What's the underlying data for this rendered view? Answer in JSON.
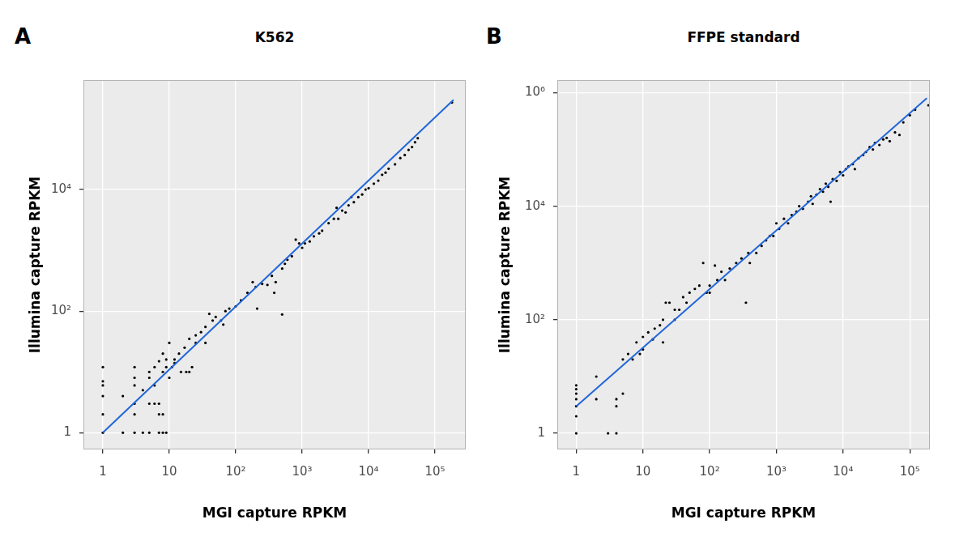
{
  "chart_data": [
    {
      "type": "scatter",
      "title": "K562",
      "annotations": [
        "A"
      ],
      "x_label": "MGI capture RPKM",
      "y_label": "Illumina capture RPKM",
      "log": true,
      "grid": true,
      "xlim": [
        0.51,
        290000
      ],
      "ylim": [
        0.53,
        630000
      ],
      "xticks": [
        1,
        10,
        {
          "value": 100,
          "label": "10²"
        },
        {
          "value": 1000,
          "label": "10³"
        },
        {
          "value": 10000,
          "label": "10⁴"
        },
        {
          "value": 100000,
          "label": "10⁵"
        }
      ],
      "yticks": [
        1,
        {
          "value": 100,
          "label": "10²"
        },
        {
          "value": 10000,
          "label": "10⁴"
        }
      ],
      "series": [
        {
          "type": "scatter",
          "color": "#000000",
          "marker": "circle",
          "x": [
            1,
            1,
            1,
            1,
            1,
            1,
            2,
            2,
            3,
            3,
            3,
            3,
            3,
            3,
            4,
            4,
            5,
            5,
            5,
            5,
            6,
            6,
            6,
            7,
            7,
            7,
            7,
            8,
            8,
            8,
            8,
            9,
            9,
            9,
            10,
            10,
            11,
            12,
            12,
            14,
            15,
            17,
            18,
            20,
            20,
            22,
            25,
            25,
            30,
            35,
            35,
            40,
            45,
            50,
            60,
            65,
            70,
            80,
            100,
            120,
            150,
            180,
            200,
            210,
            250,
            300,
            350,
            380,
            400,
            500,
            500,
            550,
            600,
            700,
            800,
            900,
            1000,
            1100,
            1300,
            1500,
            1800,
            2000,
            2500,
            3000,
            3300,
            3500,
            4000,
            4500,
            5000,
            5500,
            6000,
            7000,
            8000,
            9000,
            10000,
            12000,
            14000,
            16000,
            18000,
            20000,
            25000,
            30000,
            35000,
            40000,
            45000,
            50000,
            55000,
            180000
          ],
          "values": [
            1,
            2,
            4,
            6,
            7,
            12,
            1,
            4,
            1,
            2,
            3,
            6,
            8,
            12,
            1,
            5,
            1,
            3,
            8,
            10,
            3,
            6,
            12,
            1,
            2,
            3,
            15,
            1,
            2,
            10,
            20,
            1,
            12,
            16,
            8,
            30,
            12,
            14,
            16,
            20,
            10,
            25,
            10,
            10,
            35,
            12,
            30,
            40,
            45,
            30,
            55,
            90,
            70,
            80,
            70,
            60,
            100,
            110,
            120,
            150,
            200,
            300,
            250,
            110,
            280,
            270,
            380,
            200,
            300,
            88,
            500,
            600,
            700,
            800,
            1500,
            1300,
            1100,
            1300,
            1400,
            1700,
            1900,
            2100,
            2800,
            3300,
            5000,
            3300,
            4500,
            4200,
            5500,
            7500,
            6200,
            7500,
            8300,
            10000,
            10500,
            12500,
            14000,
            17500,
            19000,
            22000,
            26000,
            33000,
            37000,
            45000,
            50000,
            60000,
            70000,
            270000
          ]
        },
        {
          "type": "line",
          "color": "#2166d9",
          "line_style": "solid",
          "x": [
            1,
            190000
          ],
          "values": [
            1,
            300000
          ]
        }
      ]
    },
    {
      "type": "scatter",
      "title": "FFPE standard",
      "annotations": [
        "B"
      ],
      "x_label": "MGI capture RPKM",
      "y_label": "Illumina capture RPKM",
      "log": true,
      "grid": true,
      "xlim": [
        0.52,
        200000
      ],
      "ylim": [
        0.52,
        1660000
      ],
      "xticks": [
        1,
        10,
        {
          "value": 100,
          "label": "10²"
        },
        {
          "value": 1000,
          "label": "10³"
        },
        {
          "value": 10000,
          "label": "10⁴"
        },
        {
          "value": 100000,
          "label": "10⁵"
        }
      ],
      "yticks": [
        1,
        {
          "value": 100,
          "label": "10²"
        },
        {
          "value": 10000,
          "label": "10⁴"
        },
        {
          "value": 1000000,
          "label": "10⁶"
        }
      ],
      "series": [
        {
          "type": "scatter",
          "color": "#000000",
          "marker": "circle",
          "x": [
            1,
            1,
            1,
            1,
            1,
            1,
            1,
            2,
            2,
            3,
            4,
            4,
            4,
            5,
            5,
            6,
            7,
            8,
            9,
            10,
            10,
            12,
            14,
            15,
            18,
            20,
            20,
            22,
            25,
            30,
            30,
            35,
            40,
            45,
            50,
            60,
            70,
            80,
            90,
            100,
            100,
            120,
            130,
            150,
            170,
            200,
            250,
            300,
            350,
            380,
            400,
            500,
            600,
            700,
            800,
            900,
            1000,
            1100,
            1300,
            1500,
            1700,
            2000,
            2200,
            2500,
            3000,
            3300,
            3500,
            4000,
            4500,
            5000,
            5500,
            6000,
            6500,
            7000,
            8000,
            9000,
            10000,
            11000,
            12000,
            14000,
            15000,
            17000,
            20000,
            22000,
            25000,
            28000,
            30000,
            35000,
            40000,
            45000,
            50000,
            60000,
            70000,
            80000,
            100000,
            120000,
            190000
          ],
          "values": [
            1,
            2,
            3,
            4,
            5,
            6,
            7,
            10,
            4,
            1,
            1,
            3,
            4,
            5,
            20,
            25,
            20,
            40,
            25,
            30,
            50,
            60,
            45,
            70,
            80,
            40,
            100,
            200,
            200,
            100,
            150,
            150,
            250,
            200,
            300,
            350,
            400,
            1000,
            300,
            400,
            300,
            900,
            500,
            700,
            500,
            800,
            1000,
            1200,
            200,
            1500,
            1000,
            1500,
            2000,
            2500,
            3000,
            3000,
            5000,
            4000,
            6000,
            5000,
            7000,
            8000,
            10000,
            9000,
            12000,
            15000,
            11000,
            16000,
            20000,
            18000,
            25000,
            22000,
            12000,
            30000,
            28000,
            40000,
            35000,
            45000,
            50000,
            55000,
            45000,
            70000,
            80000,
            90000,
            110000,
            100000,
            130000,
            120000,
            150000,
            160000,
            140000,
            200000,
            180000,
            300000,
            400000,
            500000,
            600000
          ]
        },
        {
          "type": "line",
          "color": "#2166d9",
          "line_style": "solid",
          "x": [
            1,
            180000
          ],
          "values": [
            3,
            800000
          ]
        }
      ]
    }
  ]
}
